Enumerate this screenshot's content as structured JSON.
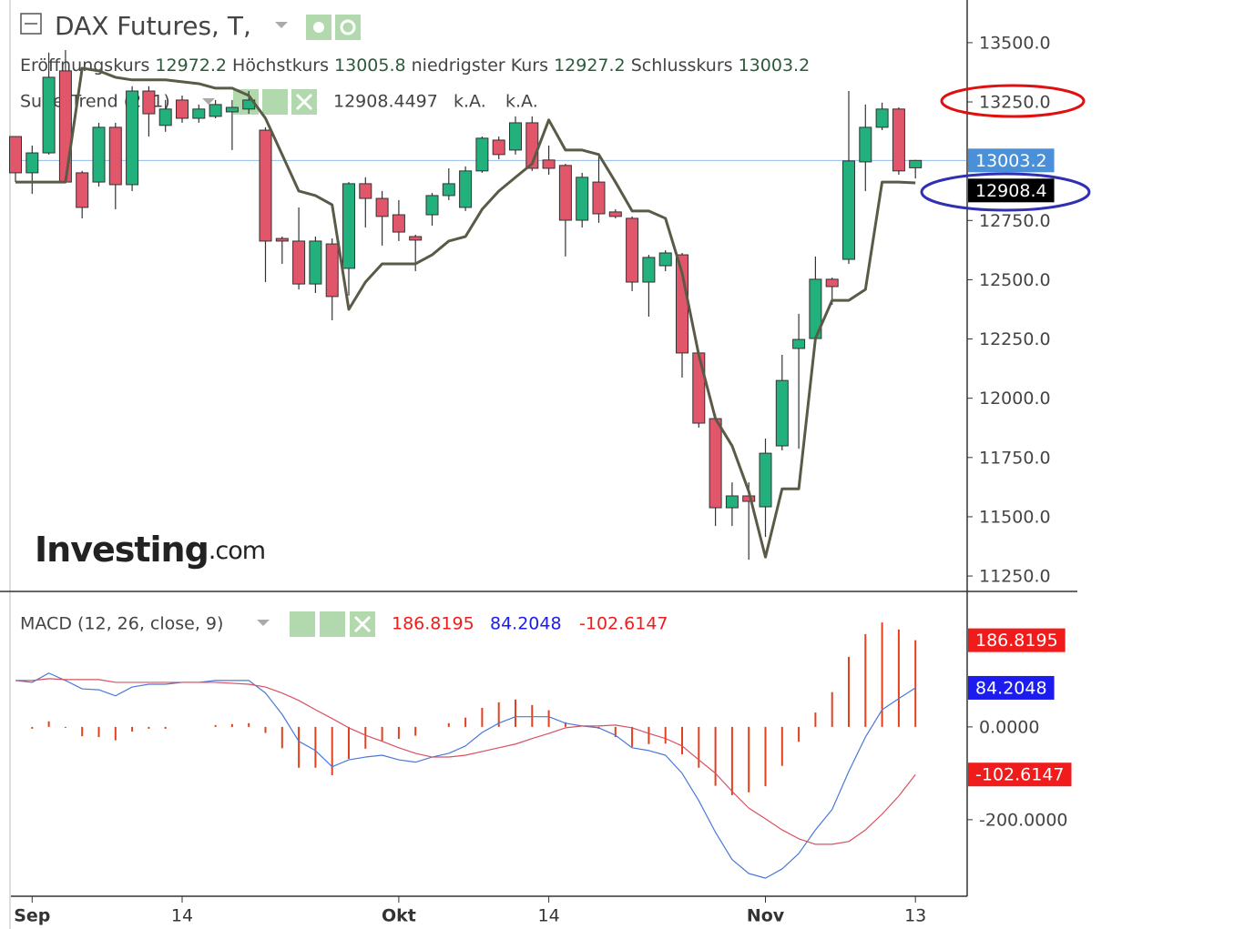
{
  "chart_data": [
    {
      "type": "candlestick",
      "title": "DAX Futures, T,",
      "legend_labels": [
        "Eröffnungskurs",
        "Höchstkurs",
        "niedrigster Kurs",
        "Schlusskurs"
      ],
      "open": [
        13104,
        12951,
        13035,
        13381,
        12951,
        12912,
        13143,
        12901,
        13296,
        13151,
        13258,
        13181,
        13189,
        13208,
        13220,
        13131,
        12674,
        12663,
        12482,
        12651,
        12548,
        12905,
        12843,
        12774,
        12682,
        12774,
        12855,
        12805,
        12959,
        13089,
        13047,
        13162,
        13005,
        12982,
        12751,
        12912,
        12786,
        12759,
        12490,
        12559,
        12605,
        12191,
        11914,
        11538,
        11588,
        11542,
        11799,
        12210,
        12252,
        12502,
        12586,
        12997,
        13143,
        13220,
        12972.2
      ],
      "high": [
        13104,
        13066,
        13458,
        13469,
        12959,
        13162,
        13162,
        13316,
        13316,
        13258,
        13277,
        13239,
        13258,
        13258,
        13296,
        13143,
        12682,
        12805,
        12682,
        12674,
        12912,
        12932,
        12874,
        12836,
        12690,
        12866,
        12970,
        12978,
        13104,
        13104,
        13189,
        13189,
        13066,
        12989,
        12951,
        13020,
        12797,
        12767,
        12605,
        12624,
        12613,
        12202,
        11933,
        11645,
        11645,
        11830,
        12183,
        12356,
        12598,
        12509,
        13296,
        13239,
        13247,
        13227,
        13005.8
      ],
      "low": [
        12912,
        12862,
        13028,
        12912,
        12759,
        12893,
        12797,
        12874,
        13104,
        13124,
        13162,
        13162,
        13181,
        13047,
        13200,
        12490,
        12567,
        12459,
        12444,
        12329,
        12433,
        12720,
        12644,
        12663,
        12536,
        12728,
        12836,
        12790,
        12951,
        13008,
        13028,
        12959,
        12943,
        12598,
        12720,
        12740,
        12759,
        12452,
        12344,
        12536,
        12087,
        11876,
        11461,
        11461,
        11319,
        11415,
        11780,
        11787,
        12240,
        12394,
        12567,
        12874,
        13131,
        12943,
        12927.2
      ],
      "close": [
        12951,
        13035,
        13354,
        12912,
        12805,
        13143,
        12901,
        13296,
        13200,
        13220,
        13181,
        13220,
        13239,
        13227,
        13258,
        12663,
        12663,
        12482,
        12663,
        12429,
        12905,
        12843,
        12767,
        12701,
        12667,
        12855,
        12905,
        12959,
        13097,
        13028,
        13162,
        12970,
        12970,
        12751,
        12932,
        12778,
        12767,
        12490,
        12594,
        12613,
        12191,
        11895,
        11538,
        11588,
        11565,
        11768,
        12075,
        12248,
        12502,
        12471,
        13001,
        13143,
        13220,
        12959,
        13003.2
      ],
      "up_color": "#22b07d",
      "down_color": "#e2566b",
      "last_price_color": "#4a90d9",
      "series": [
        {
          "name": "SuperTrend (2, 1)",
          "type": "line",
          "color": "#5a5a46",
          "box_color": "#000000",
          "status": [
            "k.A.",
            "k.A."
          ],
          "values": [
            12912,
            12912,
            12912,
            12912,
            13392,
            13381,
            13354,
            13343,
            13343,
            13343,
            13335,
            13327,
            13308,
            13308,
            13277,
            13181,
            13028,
            12874,
            12855,
            12816,
            12375,
            12490,
            12567,
            12567,
            12567,
            12605,
            12663,
            12682,
            12797,
            12874,
            12932,
            12989,
            13174,
            13047,
            13047,
            13028,
            12912,
            12790,
            12790,
            12759,
            12528,
            12183,
            11914,
            11799,
            11607,
            11330,
            11618,
            11618,
            12252,
            12413,
            12413,
            12459,
            12912,
            12912,
            12908.4497
          ],
          "value_labels": [
            null,
            null,
            null,
            null,
            null,
            null,
            null,
            null,
            null,
            null,
            null,
            null,
            null,
            null,
            null,
            null,
            null,
            null,
            null,
            null,
            null,
            null,
            null,
            null,
            null,
            null,
            null,
            null,
            null,
            null,
            null,
            null,
            null,
            null,
            null,
            null,
            null,
            null,
            null,
            null,
            null,
            null,
            null,
            null,
            null,
            null,
            null,
            null,
            null,
            null,
            null,
            null,
            null,
            null,
            "12908.4"
          ]
        }
      ],
      "ylim": [
        11185,
        13680
      ],
      "yticks": [
        {
          "value": 11250,
          "label": "11250.0"
        },
        {
          "value": 11500,
          "label": "11500.0"
        },
        {
          "value": 11750,
          "label": "11750.0"
        },
        {
          "value": 12000,
          "label": "12000.0"
        },
        {
          "value": 12250,
          "label": "12250.0"
        },
        {
          "value": 12500,
          "label": "12500.0"
        },
        {
          "value": 12750,
          "label": "12750.0"
        },
        {
          "value": 13250,
          "label": "13250.0"
        },
        {
          "value": 13500,
          "label": "13500.0"
        }
      ]
    },
    {
      "type": "macd",
      "title": "MACD (12, 26, close, 9)",
      "categories": [
        null,
        "Sep",
        null,
        null,
        null,
        null,
        null,
        null,
        null,
        null,
        "14",
        null,
        null,
        null,
        null,
        null,
        null,
        null,
        null,
        null,
        null,
        null,
        null,
        "Okt",
        null,
        null,
        null,
        null,
        null,
        null,
        null,
        null,
        "14",
        null,
        null,
        null,
        null,
        null,
        null,
        null,
        null,
        null,
        null,
        null,
        null,
        "Nov",
        null,
        null,
        null,
        null,
        null,
        null,
        null,
        null,
        "13"
      ],
      "series": [
        {
          "type": "histogram",
          "color": "#e4401e",
          "box_color": "#f01c1c",
          "values": [
            0,
            -4,
            12,
            -2,
            -20,
            -22,
            -29,
            -10,
            -4,
            -4,
            0,
            0,
            4,
            6,
            8,
            -13,
            -46,
            -88,
            -88,
            -104,
            -69,
            -47,
            -30,
            -26,
            -19,
            0,
            8,
            20,
            41,
            53,
            59,
            47,
            36,
            10,
            0,
            -4,
            -22,
            -43,
            -37,
            -36,
            -59,
            -88,
            -127,
            -147,
            -141,
            -128,
            -84,
            -32,
            31,
            75,
            151,
            200,
            225,
            210,
            186.8195
          ]
        },
        {
          "type": "line",
          "color": "#4a78d8",
          "box_color": "#1c1cee",
          "values": [
            100,
            96,
            116,
            100,
            82,
            80,
            67,
            86,
            92,
            92,
            96,
            96,
            100,
            100,
            100,
            73,
            27,
            -31,
            -51,
            -86,
            -71,
            -65,
            -61,
            -71,
            -76,
            -65,
            -57,
            -41,
            -12,
            8,
            22,
            22,
            22,
            8,
            2,
            -2,
            -18,
            -45,
            -51,
            -61,
            -100,
            -159,
            -227,
            -286,
            -316,
            -326,
            -306,
            -273,
            -222,
            -178,
            -96,
            -22,
            37,
            61,
            84.2048
          ]
        },
        {
          "type": "line",
          "color": "#d9505f",
          "box_color": "#f01c1c",
          "values": [
            100,
            100,
            104,
            102,
            102,
            102,
            96,
            96,
            96,
            96,
            96,
            96,
            96,
            94,
            92,
            86,
            73,
            57,
            37,
            18,
            -2,
            -18,
            -31,
            -45,
            -57,
            -65,
            -65,
            -61,
            -53,
            -45,
            -37,
            -25,
            -14,
            -2,
            2,
            2,
            4,
            -2,
            -14,
            -25,
            -41,
            -71,
            -100,
            -139,
            -175,
            -198,
            -222,
            -241,
            -253,
            -253,
            -247,
            -222,
            -188,
            -149,
            -102.6147
          ]
        }
      ],
      "ylim": [
        -365,
        292
      ],
      "yticks": [
        {
          "value": -200,
          "label": "-200.0000"
        },
        {
          "value": 0,
          "label": "0.0000"
        }
      ]
    }
  ],
  "logo": {
    "name": "Investing",
    "suffix": ".com"
  }
}
